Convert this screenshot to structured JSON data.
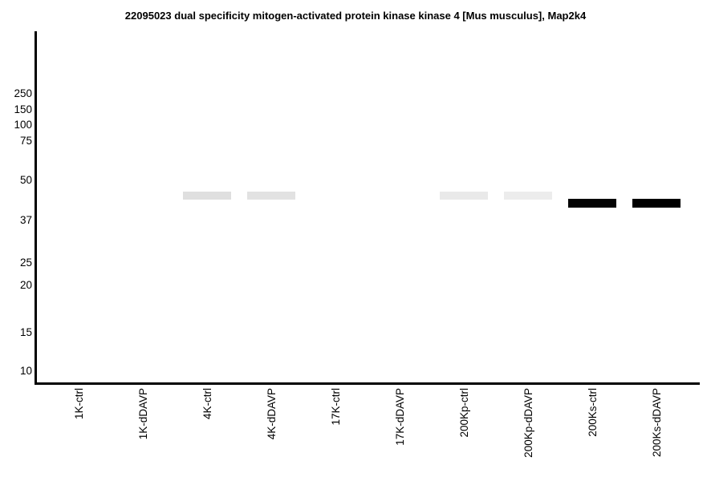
{
  "title": "22095023 dual specificity mitogen-activated protein kinase kinase 4 [Mus musculus], Map2k4",
  "chart_data": {
    "type": "western-blot",
    "title": "22095023 dual specificity mitogen-activated protein kinase kinase 4 [Mus musculus], Map2k4",
    "yaxis": {
      "markers": [
        250,
        150,
        100,
        75,
        50,
        37,
        25,
        20,
        15,
        10
      ]
    },
    "lanes": [
      "1K-ctrl",
      "1K-dDAVP",
      "4K-ctrl",
      "4K-dDAVP",
      "17K-ctrl",
      "17K-dDAVP",
      "200Kp-ctrl",
      "200Kp-dDAVP",
      "200Ks-ctrl",
      "200Ks-dDAVP"
    ],
    "bands": [
      {
        "lane": "4K-ctrl",
        "kda": 45,
        "color": "#dfdfdf",
        "thickness_px": 10
      },
      {
        "lane": "4K-dDAVP",
        "kda": 45,
        "color": "#e2e2e2",
        "thickness_px": 10
      },
      {
        "lane": "200Kp-ctrl",
        "kda": 45,
        "color": "#e9e9e9",
        "thickness_px": 10
      },
      {
        "lane": "200Kp-dDAVP",
        "kda": 45,
        "color": "#ececec",
        "thickness_px": 10
      },
      {
        "lane": "200Ks-ctrl",
        "kda": 42.6,
        "color": "#030303",
        "thickness_px": 11
      },
      {
        "lane": "200Ks-dDAVP",
        "kda": 42.6,
        "color": "#000000",
        "thickness_px": 11
      }
    ],
    "axis_color": "#000000",
    "background": "#ffffff",
    "layout_hints": {
      "grid": "off",
      "legend": "none",
      "x_labels_rotated_deg": 90
    }
  }
}
